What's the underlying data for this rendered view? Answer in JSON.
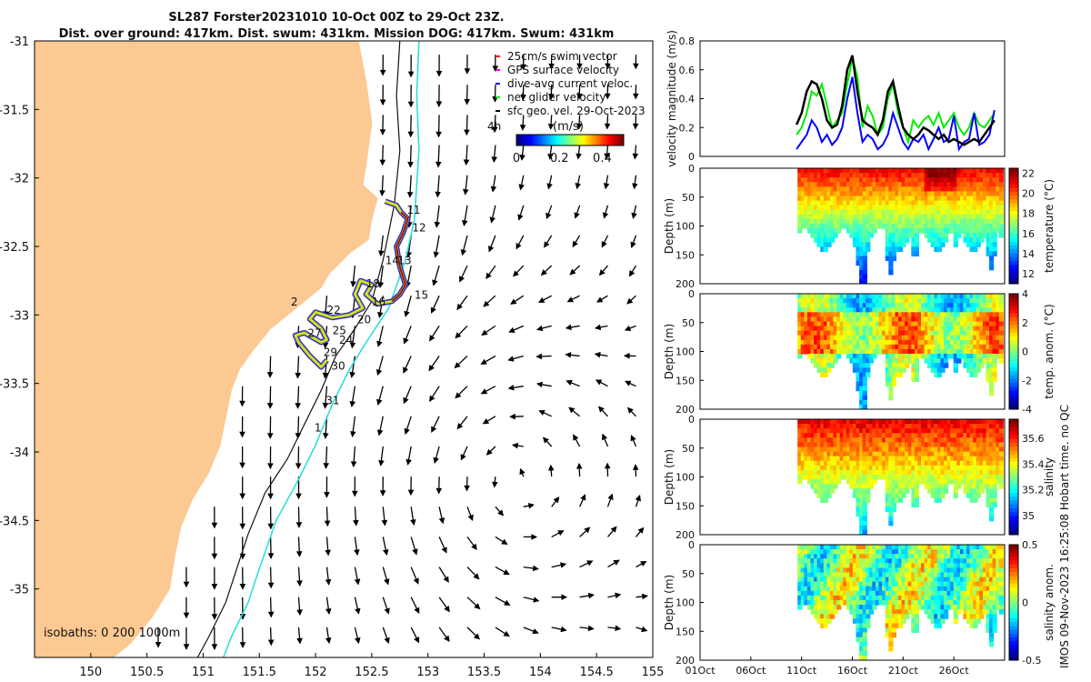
{
  "title_line1": "SL287 Forster20231010 10-Oct 00Z to 29-Oct 23Z.",
  "title_line2": "Dist. over ground: 417km. Dist. swum: 431km. Mission DOG: 417km. Swum: 431km",
  "stamp": "IMOS 09-Nov-2023 16:25:08 Hobart time. no QC",
  "colors": {
    "land": "#fdc993",
    "isobath": "#111111",
    "isobath_1000": "#22dddd",
    "swum": "#ff0000",
    "gps": "#ee00ee",
    "dive_avg": "#0000ff",
    "net": "#00ee00",
    "geo": "#000000"
  },
  "chart_data": [
    {
      "type": "scatter",
      "name": "map",
      "xlim": [
        149.5,
        155
      ],
      "ylim": [
        -35.5,
        -31
      ],
      "xticks": [
        {
          "v": 150,
          "label": "150"
        },
        {
          "v": 150.5,
          "label": "150.5"
        },
        {
          "v": 151,
          "label": "151"
        },
        {
          "v": 151.5,
          "label": "151.5"
        },
        {
          "v": 152,
          "label": "152"
        },
        {
          "v": 152.5,
          "label": "152.5"
        },
        {
          "v": 153,
          "label": "153"
        },
        {
          "v": 153.5,
          "label": "153.5"
        },
        {
          "v": 154,
          "label": "154"
        },
        {
          "v": 154.5,
          "label": "154.5"
        },
        {
          "v": 155,
          "label": "155"
        }
      ],
      "yticks": [
        {
          "v": -31,
          "label": "-31"
        },
        {
          "v": -31.5,
          "label": "-31.5"
        },
        {
          "v": -32,
          "label": "-32"
        },
        {
          "v": -32.5,
          "label": "-32.5"
        },
        {
          "v": -33,
          "label": "-33"
        },
        {
          "v": -33.5,
          "label": "-33.5"
        },
        {
          "v": -34,
          "label": "-34"
        },
        {
          "v": -34.5,
          "label": "-34.5"
        },
        {
          "v": -35,
          "label": "-35"
        }
      ],
      "legend": {
        "placement": "top-right",
        "entries": [
          {
            "label": "25cm/s swim vector",
            "color": "#ff0000"
          },
          {
            "label": "GPS surface velocity",
            "color": "#ee00ee"
          },
          {
            "label": "dive-avg current veloc.",
            "color": "#0000ff"
          },
          {
            "label": "net glider velocity",
            "color": "#00ee00"
          },
          {
            "label": "sfc geo. vel. 29-Oct-2023",
            "color": "#000000"
          }
        ]
      },
      "colorbar": {
        "label": "(m/s)",
        "side_label": "4h",
        "range": [
          0,
          0.5
        ],
        "ticks": [
          {
            "v": 0,
            "label": "0"
          },
          {
            "v": 0.2,
            "label": "0.2"
          },
          {
            "v": 0.4,
            "label": "0.4"
          }
        ]
      },
      "isobaths_label": "isobaths: 0   200  1000m",
      "coast": [
        [
          152.38,
          -31
        ],
        [
          152.45,
          -31.3
        ],
        [
          152.5,
          -31.6
        ],
        [
          152.45,
          -31.9
        ],
        [
          152.42,
          -32.05
        ],
        [
          152.55,
          -32.15
        ],
        [
          152.5,
          -32.3
        ],
        [
          152.47,
          -32.45
        ],
        [
          152.3,
          -32.55
        ],
        [
          152.12,
          -32.7
        ],
        [
          152.05,
          -32.8
        ],
        [
          151.9,
          -32.9
        ],
        [
          151.75,
          -33.0
        ],
        [
          151.6,
          -33.1
        ],
        [
          151.45,
          -33.25
        ],
        [
          151.32,
          -33.4
        ],
        [
          151.25,
          -33.55
        ],
        [
          151.2,
          -33.75
        ],
        [
          151.15,
          -33.95
        ],
        [
          151.05,
          -34.15
        ],
        [
          150.9,
          -34.35
        ],
        [
          150.8,
          -34.55
        ],
        [
          150.75,
          -34.75
        ],
        [
          150.7,
          -35.0
        ],
        [
          150.55,
          -35.2
        ],
        [
          150.35,
          -35.4
        ],
        [
          150.2,
          -35.5
        ]
      ],
      "isobath_200": [
        [
          152.75,
          -31
        ],
        [
          152.72,
          -31.4
        ],
        [
          152.75,
          -31.8
        ],
        [
          152.7,
          -32.2
        ],
        [
          152.6,
          -32.6
        ],
        [
          152.5,
          -32.9
        ],
        [
          152.35,
          -33.1
        ],
        [
          152.18,
          -33.3
        ],
        [
          152.05,
          -33.55
        ],
        [
          151.9,
          -33.8
        ],
        [
          151.75,
          -34.05
        ],
        [
          151.55,
          -34.3
        ],
        [
          151.4,
          -34.6
        ],
        [
          151.3,
          -34.85
        ],
        [
          151.2,
          -35.1
        ],
        [
          151.05,
          -35.35
        ],
        [
          150.95,
          -35.5
        ]
      ],
      "isobath_1000": [
        [
          152.92,
          -31
        ],
        [
          152.9,
          -31.4
        ],
        [
          152.92,
          -31.8
        ],
        [
          152.88,
          -32.3
        ],
        [
          152.8,
          -32.6
        ],
        [
          152.65,
          -32.95
        ],
        [
          152.45,
          -33.2
        ],
        [
          152.3,
          -33.4
        ],
        [
          152.15,
          -33.65
        ],
        [
          152.0,
          -33.95
        ],
        [
          151.85,
          -34.2
        ],
        [
          151.65,
          -34.5
        ],
        [
          151.5,
          -34.85
        ],
        [
          151.4,
          -35.1
        ],
        [
          151.25,
          -35.35
        ],
        [
          151.18,
          -35.5
        ]
      ],
      "glider_track": [
        [
          152.62,
          -32.17
        ],
        [
          152.72,
          -32.2
        ],
        [
          152.76,
          -32.25
        ],
        [
          152.82,
          -32.3
        ],
        [
          152.78,
          -32.4
        ],
        [
          152.72,
          -32.5
        ],
        [
          152.75,
          -32.65
        ],
        [
          152.8,
          -32.78
        ],
        [
          152.75,
          -32.85
        ],
        [
          152.68,
          -32.9
        ],
        [
          152.55,
          -32.92
        ],
        [
          152.45,
          -32.85
        ],
        [
          152.5,
          -32.78
        ],
        [
          152.4,
          -32.75
        ],
        [
          152.35,
          -32.85
        ],
        [
          152.42,
          -32.95
        ],
        [
          152.3,
          -33.0
        ],
        [
          152.15,
          -33.02
        ],
        [
          152.0,
          -32.98
        ],
        [
          151.95,
          -33.03
        ],
        [
          152.05,
          -33.1
        ],
        [
          152.1,
          -33.18
        ],
        [
          152.05,
          -33.2
        ],
        [
          151.9,
          -33.13
        ],
        [
          151.82,
          -33.15
        ],
        [
          151.85,
          -33.2
        ],
        [
          151.95,
          -33.3
        ],
        [
          152.05,
          -33.38
        ],
        [
          152.1,
          -33.33
        ]
      ],
      "track_labels": [
        {
          "x": 152.81,
          "y": -32.26,
          "label": "11"
        },
        {
          "x": 152.86,
          "y": -32.39,
          "label": "12"
        },
        {
          "x": 152.73,
          "y": -32.63,
          "label": "13"
        },
        {
          "x": 152.62,
          "y": -32.63,
          "label": "14"
        },
        {
          "x": 152.88,
          "y": -32.88,
          "label": "15"
        },
        {
          "x": 152.5,
          "y": -32.93,
          "label": "16"
        },
        {
          "x": 152.45,
          "y": -32.8,
          "label": "18"
        },
        {
          "x": 152.37,
          "y": -33.06,
          "label": "20"
        },
        {
          "x": 152.1,
          "y": -32.99,
          "label": "22"
        },
        {
          "x": 152.21,
          "y": -33.21,
          "label": "24"
        },
        {
          "x": 152.15,
          "y": -33.14,
          "label": "25"
        },
        {
          "x": 151.93,
          "y": -33.16,
          "label": "27"
        },
        {
          "x": 152.07,
          "y": -33.3,
          "label": "29"
        },
        {
          "x": 152.14,
          "y": -33.4,
          "label": "30"
        },
        {
          "x": 152.09,
          "y": -33.65,
          "label": "31"
        },
        {
          "x": 151.99,
          "y": -33.85,
          "label": "1"
        },
        {
          "x": 151.78,
          "y": -32.93,
          "label": "2"
        }
      ]
    },
    {
      "type": "line",
      "name": "velocity",
      "ylabel": "velocity magnitude (m/s)",
      "xlim": [
        0,
        30
      ],
      "ylim": [
        0,
        0.8
      ],
      "yticks": [
        {
          "v": 0,
          "label": "0"
        },
        {
          "v": 0.2,
          "label": "0.2"
        },
        {
          "v": 0.4,
          "label": "0.4"
        },
        {
          "v": 0.6,
          "label": "0.6"
        },
        {
          "v": 0.8,
          "label": "0.8"
        }
      ],
      "series": [
        {
          "name": "net glider velocity",
          "color": "#00ee00",
          "x": [
            9.5,
            10,
            10.5,
            11,
            11.5,
            12,
            12.5,
            13,
            13.5,
            14,
            14.5,
            15,
            15.5,
            16,
            16.5,
            17,
            17.5,
            18,
            18.5,
            19,
            19.5,
            20,
            20.5,
            21,
            21.5,
            22,
            22.5,
            23,
            23.5,
            24,
            24.5,
            25,
            25.5,
            26,
            26.5,
            27,
            27.5,
            28,
            28.5,
            29
          ],
          "y": [
            0.15,
            0.2,
            0.3,
            0.45,
            0.42,
            0.5,
            0.35,
            0.2,
            0.25,
            0.3,
            0.5,
            0.68,
            0.55,
            0.2,
            0.35,
            0.28,
            0.15,
            0.2,
            0.4,
            0.5,
            0.3,
            0.2,
            0.1,
            0.25,
            0.2,
            0.25,
            0.28,
            0.22,
            0.3,
            0.2,
            0.25,
            0.3,
            0.2,
            0.15,
            0.2,
            0.3,
            0.22,
            0.2,
            0.25,
            0.3
          ]
        },
        {
          "name": "dive-avg current veloc.",
          "color": "#0000ff",
          "x": [
            9.5,
            10,
            10.5,
            11,
            11.5,
            12,
            12.5,
            13,
            13.5,
            14,
            14.5,
            15,
            15.5,
            16,
            16.5,
            17,
            17.5,
            18,
            18.5,
            19,
            19.5,
            20,
            20.5,
            21,
            21.5,
            22,
            22.5,
            23,
            23.5,
            24,
            24.5,
            25,
            25.5,
            26,
            26.5,
            27,
            27.5,
            28,
            28.5,
            29
          ],
          "y": [
            0.05,
            0.1,
            0.15,
            0.25,
            0.2,
            0.1,
            0.15,
            0.08,
            0.12,
            0.2,
            0.4,
            0.55,
            0.3,
            0.1,
            0.15,
            0.12,
            0.05,
            0.08,
            0.15,
            0.3,
            0.2,
            0.1,
            0.05,
            0.12,
            0.1,
            0.15,
            0.05,
            0.12,
            0.2,
            0.1,
            0.12,
            0.28,
            0.05,
            0.1,
            0.12,
            0.3,
            0.08,
            0.1,
            0.15,
            0.32
          ]
        },
        {
          "name": "sfc geo. vel.",
          "color": "#000000",
          "x": [
            9.5,
            10,
            10.5,
            11,
            11.5,
            12,
            12.5,
            13,
            13.5,
            14,
            14.5,
            15,
            15.5,
            16,
            16.5,
            17,
            17.5,
            18,
            18.5,
            19,
            19.5,
            20,
            20.5,
            21,
            21.5,
            22,
            22.5,
            23,
            23.5,
            24,
            24.5,
            25,
            25.5,
            26,
            26.5,
            27,
            27.5,
            28,
            28.5,
            29
          ],
          "y": [
            0.22,
            0.3,
            0.45,
            0.52,
            0.5,
            0.4,
            0.25,
            0.2,
            0.22,
            0.35,
            0.6,
            0.7,
            0.45,
            0.25,
            0.22,
            0.2,
            0.15,
            0.25,
            0.45,
            0.52,
            0.35,
            0.2,
            0.15,
            0.12,
            0.15,
            0.2,
            0.18,
            0.15,
            0.12,
            0.15,
            0.1,
            0.12,
            0.1,
            0.08,
            0.1,
            0.12,
            0.1,
            0.15,
            0.2,
            0.25
          ]
        }
      ]
    },
    {
      "type": "heatmap",
      "name": "temperature",
      "ylabel": "Depth (m)",
      "clabel": "temperature (°C)",
      "yticks": [
        {
          "v": 0,
          "label": "0"
        },
        {
          "v": 50,
          "label": "50"
        },
        {
          "v": 100,
          "label": "100"
        },
        {
          "v": 150,
          "label": "150"
        },
        {
          "v": 200,
          "label": "200"
        }
      ],
      "crange": [
        11,
        22.5
      ],
      "cticks": [
        {
          "v": 12,
          "label": "12"
        },
        {
          "v": 14,
          "label": "14"
        },
        {
          "v": 16,
          "label": "16"
        },
        {
          "v": 18,
          "label": "18"
        },
        {
          "v": 20,
          "label": "20"
        },
        {
          "v": 22,
          "label": "22"
        }
      ]
    },
    {
      "type": "heatmap",
      "name": "temp_anom",
      "ylabel": "Depth (m)",
      "clabel": "temp. anom. (°C)",
      "yticks": [
        {
          "v": 0,
          "label": "0"
        },
        {
          "v": 50,
          "label": "50"
        },
        {
          "v": 100,
          "label": "100"
        },
        {
          "v": 150,
          "label": "150"
        },
        {
          "v": 200,
          "label": "200"
        }
      ],
      "crange": [
        -4,
        4
      ],
      "cticks": [
        {
          "v": -4,
          "label": "-4"
        },
        {
          "v": -2,
          "label": "-2"
        },
        {
          "v": 0,
          "label": "0"
        },
        {
          "v": 2,
          "label": "2"
        },
        {
          "v": 4,
          "label": "4"
        }
      ]
    },
    {
      "type": "heatmap",
      "name": "salinity",
      "ylabel": "Depth (m)",
      "clabel": "salinity",
      "yticks": [
        {
          "v": 0,
          "label": "0"
        },
        {
          "v": 50,
          "label": "50"
        },
        {
          "v": 100,
          "label": "100"
        },
        {
          "v": 150,
          "label": "150"
        },
        {
          "v": 200,
          "label": "200"
        }
      ],
      "crange": [
        34.85,
        35.75
      ],
      "cticks": [
        {
          "v": 35,
          "label": "35"
        },
        {
          "v": 35.2,
          "label": "35.2"
        },
        {
          "v": 35.4,
          "label": "35.4"
        },
        {
          "v": 35.6,
          "label": "35.6"
        }
      ]
    },
    {
      "type": "heatmap",
      "name": "sal_anom",
      "ylabel": "Depth (m)",
      "clabel": "salinity anom.",
      "yticks": [
        {
          "v": 0,
          "label": "0"
        },
        {
          "v": 50,
          "label": "50"
        },
        {
          "v": 100,
          "label": "100"
        },
        {
          "v": 150,
          "label": "150"
        },
        {
          "v": 200,
          "label": "200"
        }
      ],
      "crange": [
        -0.5,
        0.5
      ],
      "cticks": [
        {
          "v": -0.5,
          "label": "-0.5"
        },
        {
          "v": 0,
          "label": "0"
        },
        {
          "v": 0.5,
          "label": "0.5"
        }
      ],
      "xlim": [
        0,
        30
      ],
      "xticks": [
        {
          "v": 0,
          "label": "01Oct"
        },
        {
          "v": 5,
          "label": "06Oct"
        },
        {
          "v": 10,
          "label": "11Oct"
        },
        {
          "v": 15,
          "label": "16Oct"
        },
        {
          "v": 20,
          "label": "21Oct"
        },
        {
          "v": 25,
          "label": "26Oct"
        }
      ]
    }
  ]
}
